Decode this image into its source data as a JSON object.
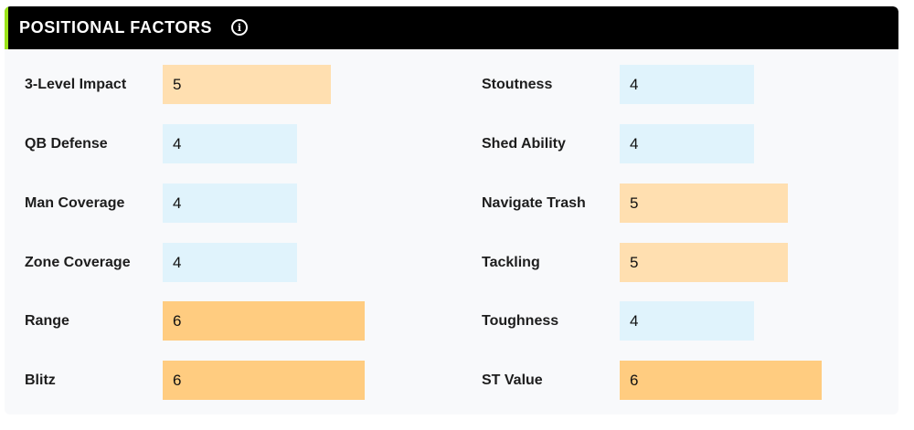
{
  "header": {
    "title": "POSITIONAL FACTORS",
    "info_icon": "info-icon"
  },
  "colors": {
    "header_bg": "#000000",
    "header_accent": "#9be31a",
    "score_4": "#e0f3fc",
    "score_5": "#ffdfb0",
    "score_6": "#ffcc80"
  },
  "factors_left": [
    {
      "label": "3-Level Impact",
      "value": "5"
    },
    {
      "label": "QB Defense",
      "value": "4"
    },
    {
      "label": "Man Coverage",
      "value": "4"
    },
    {
      "label": "Zone Coverage",
      "value": "4"
    },
    {
      "label": "Range",
      "value": "6"
    },
    {
      "label": "Blitz",
      "value": "6"
    }
  ],
  "factors_right": [
    {
      "label": "Stoutness",
      "value": "4"
    },
    {
      "label": "Shed Ability",
      "value": "4"
    },
    {
      "label": "Navigate Trash",
      "value": "5"
    },
    {
      "label": "Tackling",
      "value": "5"
    },
    {
      "label": "Toughness",
      "value": "4"
    },
    {
      "label": "ST Value",
      "value": "6"
    }
  ]
}
